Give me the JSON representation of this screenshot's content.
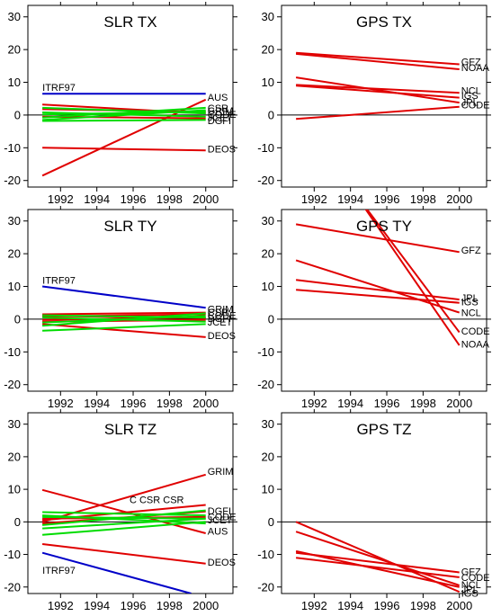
{
  "chart_data": [
    {
      "type": "line",
      "title": "SLR TX",
      "xlim": [
        1990.2,
        2001.5
      ],
      "ylim": [
        -22,
        33.5
      ],
      "xticks": [
        1992,
        1994,
        1996,
        1998,
        2000
      ],
      "yticks": [
        30,
        20,
        10,
        0,
        -10,
        -20
      ],
      "series": [
        {
          "name": "ITRF97",
          "color": "#0000c8",
          "x": [
            1991,
            2000
          ],
          "y": [
            6.5,
            6.5
          ]
        },
        {
          "name": "AUS",
          "color": "#e00000",
          "x": [
            1991,
            2000
          ],
          "y": [
            -18.5,
            4.7
          ]
        },
        {
          "name": "DEOS",
          "color": "#e00000",
          "x": [
            1991,
            2000
          ],
          "y": [
            -10,
            -10.8
          ]
        },
        {
          "name": "CSR",
          "color": "#e00000",
          "x": [
            1991,
            2000
          ],
          "y": [
            3.2,
            0.5
          ]
        },
        {
          "name": "",
          "color": "#e00000",
          "x": [
            1991,
            2000
          ],
          "y": [
            1.8,
            1.0
          ]
        },
        {
          "name": "",
          "color": "#e00000",
          "x": [
            1991,
            2000
          ],
          "y": [
            -0.5,
            -1.0
          ]
        },
        {
          "name": "",
          "color": "#00dc00",
          "x": [
            1991,
            2000
          ],
          "y": [
            2.2,
            0.5
          ]
        },
        {
          "name": "",
          "color": "#00dc00",
          "x": [
            1991,
            2000
          ],
          "y": [
            -1.5,
            1.5
          ]
        },
        {
          "name": "",
          "color": "#00dc00",
          "x": [
            1991,
            2000
          ],
          "y": [
            -0.8,
            2.2
          ]
        },
        {
          "name": "",
          "color": "#00dc00",
          "x": [
            1991,
            2000
          ],
          "y": [
            0.8,
            -0.5
          ]
        },
        {
          "name": "",
          "color": "#00dc00",
          "x": [
            1991,
            2000
          ],
          "y": [
            -1.8,
            -1.5
          ]
        },
        {
          "name": "",
          "color": "#00dc00",
          "x": [
            1991,
            2000
          ],
          "y": [
            0.2,
            1.0
          ]
        }
      ],
      "labels": [
        {
          "text": "ITRF97",
          "x": 1991,
          "y": 8.5
        },
        {
          "text": "AUS",
          "x": 2000.1,
          "y": 5.5
        },
        {
          "text": "CSR",
          "x": 2000.1,
          "y": 2.2
        },
        {
          "text": "GRIM",
          "x": 2000.1,
          "y": 1.3
        },
        {
          "text": "CODE",
          "x": 2000.1,
          "y": 0.3
        },
        {
          "text": "JCET",
          "x": 2000.1,
          "y": -0.7
        },
        {
          "text": "DGFI",
          "x": 2000.1,
          "y": -1.7
        },
        {
          "text": "DEOS",
          "x": 2000.1,
          "y": -10.3
        }
      ]
    },
    {
      "type": "line",
      "title": "GPS TX",
      "xlim": [
        1990.2,
        2001.5
      ],
      "ylim": [
        -22,
        33.5
      ],
      "xticks": [
        1992,
        1994,
        1996,
        1998,
        2000
      ],
      "yticks": [
        30,
        20,
        10,
        0,
        -10,
        -20
      ],
      "series": [
        {
          "name": "GFZ",
          "color": "#e00000",
          "x": [
            1991,
            2000
          ],
          "y": [
            19,
            15.5
          ]
        },
        {
          "name": "NOAA",
          "color": "#e00000",
          "x": [
            1991,
            2000
          ],
          "y": [
            18.7,
            14
          ]
        },
        {
          "name": "NCL",
          "color": "#e00000",
          "x": [
            1991,
            2000
          ],
          "y": [
            9.2,
            6.8
          ]
        },
        {
          "name": "IGS",
          "color": "#e00000",
          "x": [
            1991,
            2000
          ],
          "y": [
            9.0,
            5.3
          ]
        },
        {
          "name": "JPL",
          "color": "#e00000",
          "x": [
            1991,
            2000
          ],
          "y": [
            11.5,
            3.8
          ]
        },
        {
          "name": "CODE",
          "color": "#e00000",
          "x": [
            1991,
            2000
          ],
          "y": [
            -1.2,
            2.5
          ]
        }
      ],
      "labels": [
        {
          "text": "GFZ",
          "x": 2000.1,
          "y": 16.3
        },
        {
          "text": "NOAA",
          "x": 2000.1,
          "y": 14.6
        },
        {
          "text": "NCL",
          "x": 2000.1,
          "y": 7.5
        },
        {
          "text": "IGS",
          "x": 2000.1,
          "y": 6.0
        },
        {
          "text": "JPL",
          "x": 2000.1,
          "y": 3.9
        },
        {
          "text": "CODE",
          "x": 2000.1,
          "y": 3.1
        }
      ]
    },
    {
      "type": "line",
      "title": "SLR TY",
      "xlim": [
        1990.2,
        2001.5
      ],
      "ylim": [
        -22,
        33.5
      ],
      "xticks": [
        1992,
        1994,
        1996,
        1998,
        2000
      ],
      "yticks": [
        30,
        20,
        10,
        0,
        -10,
        -20
      ],
      "series": [
        {
          "name": "ITRF97",
          "color": "#0000c8",
          "x": [
            1991,
            2000
          ],
          "y": [
            10,
            3.5
          ]
        },
        {
          "name": "DEOS",
          "color": "#e00000",
          "x": [
            1991,
            2000
          ],
          "y": [
            -1.5,
            -5.5
          ]
        },
        {
          "name": "",
          "color": "#e00000",
          "x": [
            1991,
            2000
          ],
          "y": [
            1.5,
            2.0
          ]
        },
        {
          "name": "",
          "color": "#e00000",
          "x": [
            1991,
            2000
          ],
          "y": [
            1.0,
            0.3
          ]
        },
        {
          "name": "",
          "color": "#e00000",
          "x": [
            1991,
            2000
          ],
          "y": [
            0.8,
            1.5
          ]
        },
        {
          "name": "",
          "color": "#e00000",
          "x": [
            1991,
            2000
          ],
          "y": [
            -0.2,
            0.5
          ]
        },
        {
          "name": "",
          "color": "#e00000",
          "x": [
            1991,
            2000
          ],
          "y": [
            -0.8,
            -0.2
          ]
        },
        {
          "name": "",
          "color": "#00dc00",
          "x": [
            1991,
            2000
          ],
          "y": [
            1.2,
            0.5
          ]
        },
        {
          "name": "",
          "color": "#00dc00",
          "x": [
            1991,
            2000
          ],
          "y": [
            -3.5,
            -1.5
          ]
        },
        {
          "name": "",
          "color": "#00dc00",
          "x": [
            1991,
            2000
          ],
          "y": [
            -2.0,
            1.8
          ]
        },
        {
          "name": "",
          "color": "#00dc00",
          "x": [
            1991,
            2000
          ],
          "y": [
            0.5,
            -0.8
          ]
        },
        {
          "name": "",
          "color": "#00dc00",
          "x": [
            1991,
            2000
          ],
          "y": [
            -1.0,
            1.0
          ]
        }
      ],
      "labels": [
        {
          "text": "ITRF97",
          "x": 1991,
          "y": 12
        },
        {
          "text": "GRIM",
          "x": 2000.1,
          "y": 3.2
        },
        {
          "text": "CSR",
          "x": 2000.1,
          "y": 2.2
        },
        {
          "text": "CODE",
          "x": 2000.1,
          "y": 1.2
        },
        {
          "text": "DGFI",
          "x": 2000.1,
          "y": 0.2
        },
        {
          "text": "JCET",
          "x": 2000.1,
          "y": -0.8
        },
        {
          "text": "DEOS",
          "x": 2000.1,
          "y": -5.0
        }
      ]
    },
    {
      "type": "line",
      "title": "GPS TY",
      "xlim": [
        1990.2,
        2001.5
      ],
      "ylim": [
        -22,
        33.5
      ],
      "xticks": [
        1992,
        1994,
        1996,
        1998,
        2000
      ],
      "yticks": [
        30,
        20,
        10,
        0,
        -10,
        -20
      ],
      "series": [
        {
          "name": "GFZ",
          "color": "#e00000",
          "x": [
            1991,
            2000
          ],
          "y": [
            29,
            20.5
          ]
        },
        {
          "name": "JPL",
          "color": "#e00000",
          "x": [
            1991,
            2000
          ],
          "y": [
            12,
            6
          ]
        },
        {
          "name": "IGS",
          "color": "#e00000",
          "x": [
            1991,
            2000
          ],
          "y": [
            9,
            5
          ]
        },
        {
          "name": "NCL",
          "color": "#e00000",
          "x": [
            1991,
            2000
          ],
          "y": [
            18,
            2
          ]
        },
        {
          "name": "CODE",
          "color": "#e00000",
          "x": [
            1991,
            2000
          ],
          "y": [
            62.5,
            -4
          ]
        },
        {
          "name": "NOAA",
          "color": "#e00000",
          "x": [
            1991,
            2000
          ],
          "y": [
            64.5,
            -8
          ]
        }
      ],
      "labels": [
        {
          "text": "GFZ",
          "x": 2000.1,
          "y": 21.2
        },
        {
          "text": "JPL",
          "x": 2000.1,
          "y": 6.6
        },
        {
          "text": "IGS",
          "x": 2000.1,
          "y": 5.3
        },
        {
          "text": "NCL",
          "x": 2000.1,
          "y": 2.0
        },
        {
          "text": "CODE",
          "x": 2000.1,
          "y": -3.6
        },
        {
          "text": "NOAA",
          "x": 2000.1,
          "y": -7.6
        }
      ]
    },
    {
      "type": "line",
      "title": "SLR TZ",
      "xlim": [
        1990.2,
        2001.5
      ],
      "ylim": [
        -22,
        33.5
      ],
      "xticks": [
        1992,
        1994,
        1996,
        1998,
        2000
      ],
      "yticks": [
        30,
        20,
        10,
        0,
        -10,
        -20
      ],
      "series": [
        {
          "name": "ITRF97",
          "color": "#0000c8",
          "x": [
            1991,
            1999.2
          ],
          "y": [
            -9.5,
            -22
          ]
        },
        {
          "name": "GRIM",
          "color": "#e00000",
          "x": [
            1991,
            2000
          ],
          "y": [
            0,
            14.5
          ]
        },
        {
          "name": "AUS",
          "color": "#e00000",
          "x": [
            1991,
            2000
          ],
          "y": [
            9.8,
            -3.5
          ]
        },
        {
          "name": "DEOS",
          "color": "#e00000",
          "x": [
            1991,
            2000
          ],
          "y": [
            -6.8,
            -12.8
          ]
        },
        {
          "name": "CSR",
          "color": "#e00000",
          "x": [
            1991,
            2000
          ],
          "y": [
            0.5,
            5.2
          ]
        },
        {
          "name": "",
          "color": "#e00000",
          "x": [
            1991,
            2000
          ],
          "y": [
            -0.5,
            3.2
          ]
        },
        {
          "name": "",
          "color": "#e00000",
          "x": [
            1991,
            2000
          ],
          "y": [
            1.0,
            1.5
          ]
        },
        {
          "name": "",
          "color": "#00dc00",
          "x": [
            1991,
            2000
          ],
          "y": [
            3.0,
            2.0
          ]
        },
        {
          "name": "",
          "color": "#00dc00",
          "x": [
            1991,
            2000
          ],
          "y": [
            -2.0,
            1.0
          ]
        },
        {
          "name": "",
          "color": "#00dc00",
          "x": [
            1991,
            2000
          ],
          "y": [
            -4.0,
            0.0
          ]
        },
        {
          "name": "",
          "color": "#00dc00",
          "x": [
            1991,
            2000
          ],
          "y": [
            2.0,
            -0.5
          ]
        },
        {
          "name": "",
          "color": "#00dc00",
          "x": [
            1991,
            2000
          ],
          "y": [
            -1.0,
            3.5
          ]
        },
        {
          "name": "",
          "color": "#00dc00",
          "x": [
            1991,
            2000
          ],
          "y": [
            1.5,
            1.0
          ]
        }
      ],
      "labels": [
        {
          "text": "GRIM",
          "x": 2000.1,
          "y": 15.5
        },
        {
          "text": "C CSR CSR",
          "x": 1995.8,
          "y": 6.8
        },
        {
          "text": "DGFI",
          "x": 2000.1,
          "y": 3.4
        },
        {
          "text": "CODE",
          "x": 2000.1,
          "y": 1.6
        },
        {
          "text": "JCET",
          "x": 2000.1,
          "y": 0.6
        },
        {
          "text": "AUS",
          "x": 2000.1,
          "y": -2.8
        },
        {
          "text": "DEOS",
          "x": 2000.1,
          "y": -12.3
        },
        {
          "text": "ITRF97",
          "x": 1991,
          "y": -14.8
        }
      ]
    },
    {
      "type": "line",
      "title": "GPS TZ",
      "xlim": [
        1990.2,
        2001.5
      ],
      "ylim": [
        -22,
        33.5
      ],
      "xticks": [
        1992,
        1994,
        1996,
        1998,
        2000
      ],
      "yticks": [
        30,
        20,
        10,
        0,
        -10,
        -20
      ],
      "series": [
        {
          "name": "GFZ",
          "color": "#e00000",
          "x": [
            1991,
            2000
          ],
          "y": [
            -9.5,
            -15.5
          ]
        },
        {
          "name": "CODE",
          "color": "#e00000",
          "x": [
            1991,
            2000
          ],
          "y": [
            -11,
            -17
          ]
        },
        {
          "name": "NCL",
          "color": "#e00000",
          "x": [
            1991,
            2000
          ],
          "y": [
            -3,
            -19.5
          ]
        },
        {
          "name": "JPL",
          "color": "#e00000",
          "x": [
            1991,
            2000
          ],
          "y": [
            -9,
            -20
          ]
        },
        {
          "name": "IGS",
          "color": "#e00000",
          "x": [
            1991,
            2000
          ],
          "y": [
            0,
            -21.5
          ]
        }
      ],
      "labels": [
        {
          "text": "GFZ",
          "x": 2000.1,
          "y": -15.2
        },
        {
          "text": "CODE",
          "x": 2000.1,
          "y": -17.0
        },
        {
          "text": "NCL",
          "x": 2000.1,
          "y": -19.2
        },
        {
          "text": "JPL",
          "x": 2000.1,
          "y": -20.6
        },
        {
          "text": "IGS",
          "x": 2000.1,
          "y": -21.8
        }
      ]
    }
  ]
}
